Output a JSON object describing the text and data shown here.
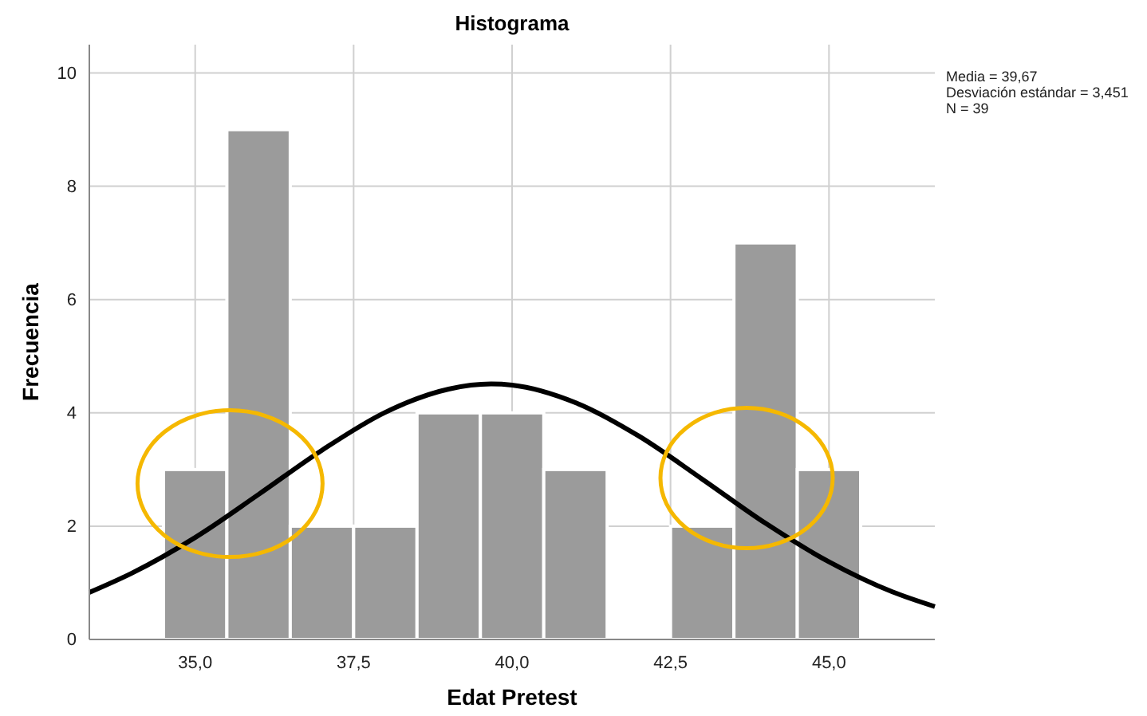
{
  "chart_data": {
    "type": "histogram",
    "title": "Histograma",
    "xlabel": "Edat Pretest",
    "ylabel": "Frecuencia",
    "bins": [
      34.5,
      35.5,
      36.5,
      37.5,
      38.5,
      39.5,
      40.5,
      41.5,
      42.5,
      43.5,
      44.5,
      45.5
    ],
    "values": [
      3,
      9,
      2,
      2,
      4,
      4,
      3,
      0,
      2,
      7,
      3
    ],
    "color": "#9b9b9b",
    "series": [
      {
        "type": "line",
        "color": "#000000",
        "x": [
          33.33,
          34,
          35,
          36,
          37,
          38,
          39,
          39.67,
          40,
          41,
          42,
          43,
          44,
          45,
          46,
          46.67
        ],
        "values": [
          0.83,
          1.17,
          1.8,
          2.56,
          3.34,
          4.01,
          4.42,
          4.51,
          4.49,
          4.18,
          3.59,
          2.83,
          2.05,
          1.37,
          0.84,
          0.58
        ]
      }
    ],
    "xlim": [
      33.33,
      46.67
    ],
    "xticks": [
      {
        "value": 35,
        "label": "35,0"
      },
      {
        "value": 37.5,
        "label": "37,5"
      },
      {
        "value": 40,
        "label": "40,0"
      },
      {
        "value": 42.5,
        "label": "42,5"
      },
      {
        "value": 45,
        "label": "45,0"
      }
    ],
    "ylim": [
      0,
      10.5
    ],
    "yticks": [
      0,
      2,
      4,
      6,
      8,
      10
    ],
    "grid": true,
    "annotations": [
      "Media = 39,67",
      "Desviación estándar = 3,451",
      "N = 39"
    ]
  }
}
